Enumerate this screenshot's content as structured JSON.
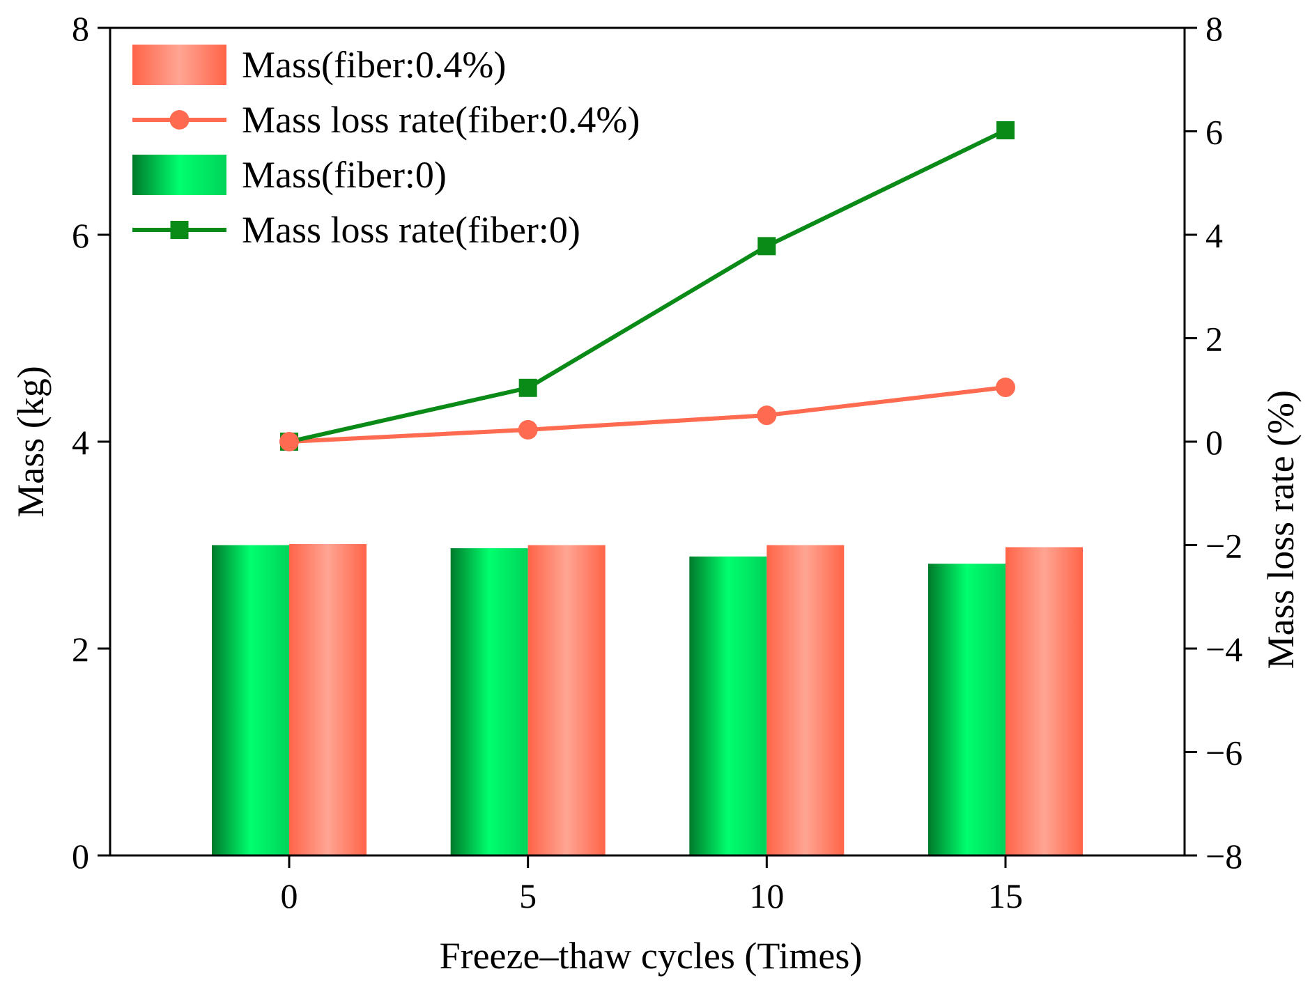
{
  "chart_data": {
    "type": "bar+line",
    "title": "",
    "xlabel": "Freeze–thaw cycles (Times)",
    "ylabel_left": "Mass (kg)",
    "ylabel_right": "Mass loss rate (%)",
    "categories": [
      "0",
      "5",
      "10",
      "15"
    ],
    "x_values": [
      0,
      5,
      10,
      15
    ],
    "ylim_left": [
      0,
      8
    ],
    "ylim_right": [
      -8,
      8
    ],
    "yticks_left": [
      "0",
      "2",
      "4",
      "6",
      "8"
    ],
    "yticks_right": [
      "−8",
      "−6",
      "−4",
      "−2",
      "0",
      "2",
      "4",
      "6",
      "8"
    ],
    "yticks_left_values": [
      0,
      2,
      4,
      6,
      8
    ],
    "yticks_right_values": [
      -8,
      -6,
      -4,
      -2,
      0,
      2,
      4,
      6,
      8
    ],
    "grid": false,
    "legend_position": "top-left",
    "bar_series": [
      {
        "name": "Mass(fiber:0)",
        "values": [
          3.0,
          2.97,
          2.89,
          2.82
        ],
        "color": "#00E060"
      },
      {
        "name": "Mass(fiber:0.4%)",
        "values": [
          3.01,
          3.0,
          3.0,
          2.98
        ],
        "color": "#FF6B50"
      }
    ],
    "line_series": [
      {
        "name": "Mass loss rate(fiber:0.4%)",
        "values": [
          0,
          0.23,
          0.51,
          1.05
        ],
        "color": "#FF6B50",
        "marker": "circle"
      },
      {
        "name": "Mass loss rate(fiber:0)",
        "values": [
          0,
          1.04,
          3.78,
          6.02
        ],
        "color": "#0A8A17",
        "marker": "square"
      }
    ],
    "legend": [
      {
        "label": "Mass(fiber:0.4%)",
        "kind": "bar",
        "color": "#FF6B50"
      },
      {
        "label": "Mass loss rate(fiber:0.4%)",
        "kind": "line-circle",
        "color": "#FF6B50"
      },
      {
        "label": "Mass(fiber:0)",
        "kind": "bar",
        "color": "#00E060"
      },
      {
        "label": "Mass loss rate(fiber:0)",
        "kind": "line-square",
        "color": "#0A8A17"
      }
    ]
  }
}
